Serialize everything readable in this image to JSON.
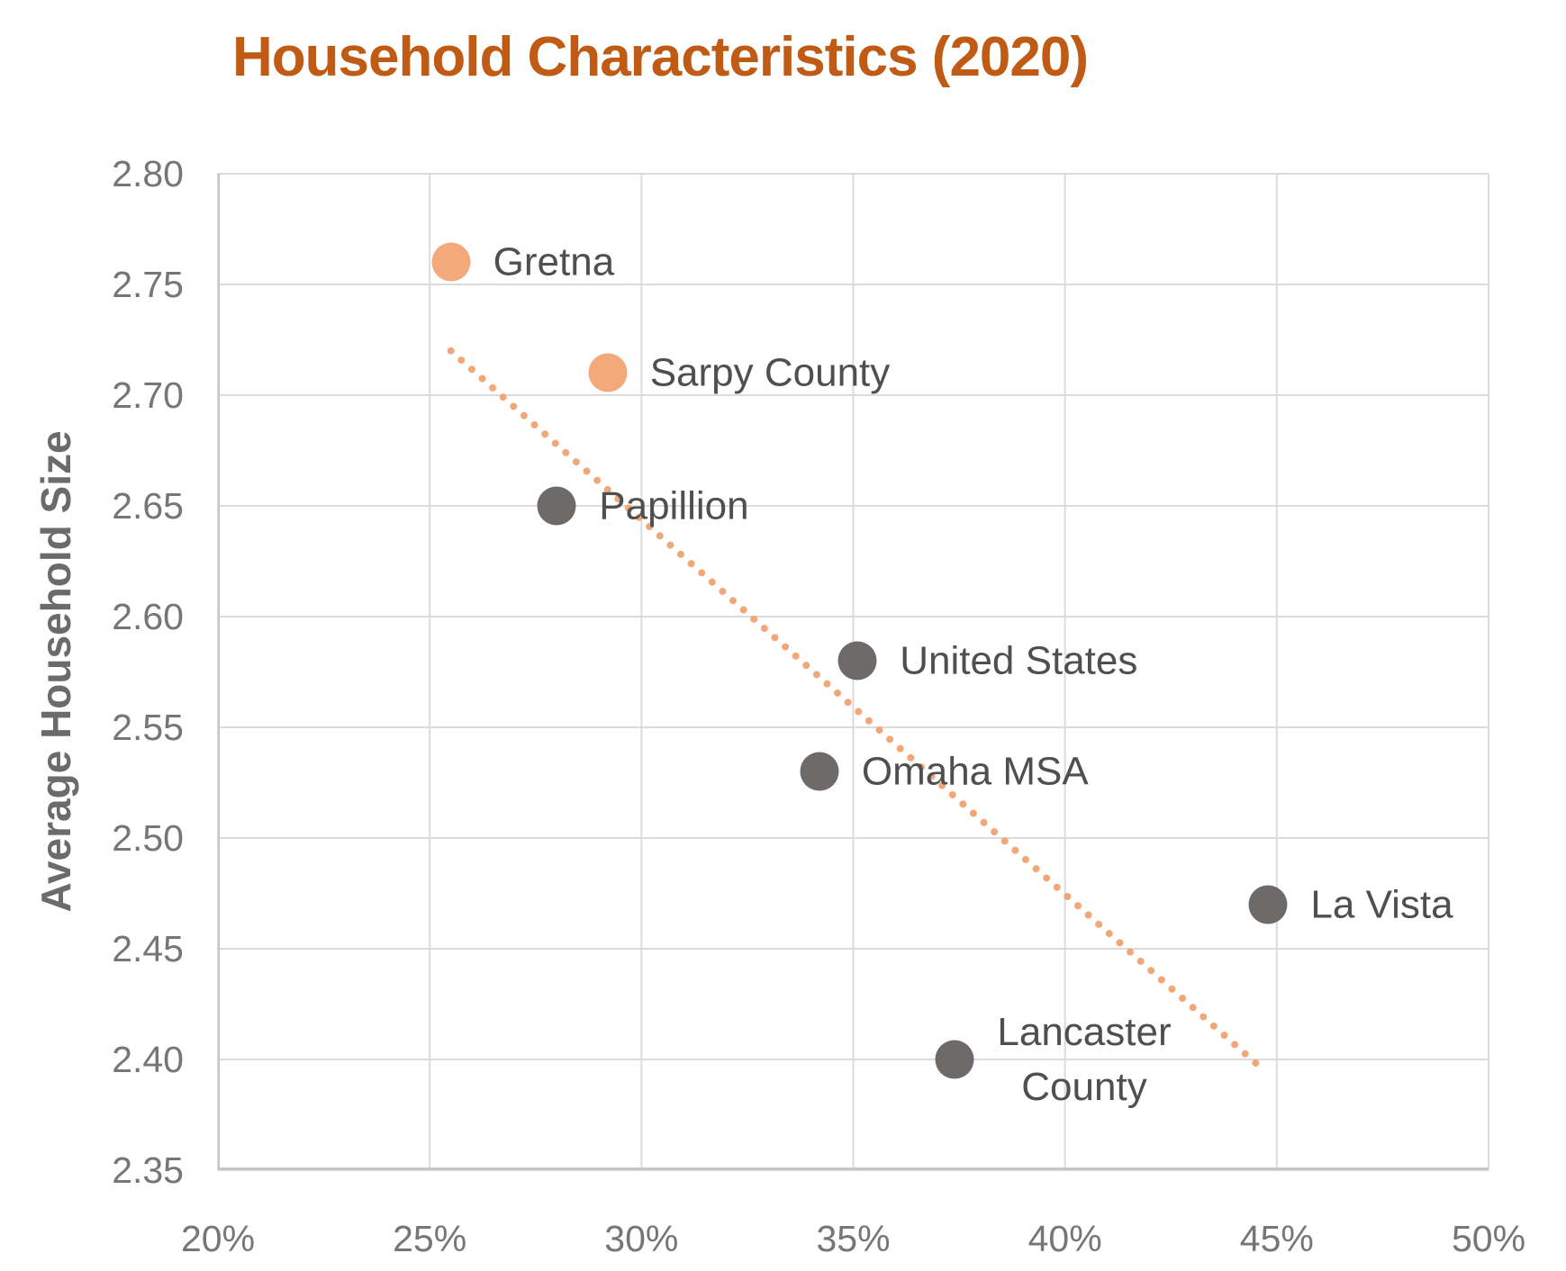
{
  "title": "Household Characteristics (2020)",
  "y_axis_title": "Average Household Size",
  "colors": {
    "title": "#C05B16",
    "highlight_point": "#F3A979",
    "base_point": "#6E6A6A",
    "trendline": "#F2A778",
    "tick_label": "#767676",
    "data_label": "#4F4F4F",
    "axis_title": "#6B6B6B",
    "gridline": "#DBDBDB",
    "axis_line": "#C6C6C6"
  },
  "chart_data": {
    "type": "scatter",
    "title": "Household Characteristics (2020)",
    "xlabel": "",
    "ylabel": "Average Household Size",
    "xlim": [
      20,
      50
    ],
    "ylim": [
      2.35,
      2.8
    ],
    "grid": true,
    "legend": "none",
    "x_ticks": [
      {
        "value": 20,
        "label": "20%"
      },
      {
        "value": 25,
        "label": "25%"
      },
      {
        "value": 30,
        "label": "30%"
      },
      {
        "value": 35,
        "label": "35%"
      },
      {
        "value": 40,
        "label": "40%"
      },
      {
        "value": 45,
        "label": "45%"
      },
      {
        "value": 50,
        "label": "50%"
      }
    ],
    "y_ticks": [
      {
        "value": 2.8,
        "label": "2.80"
      },
      {
        "value": 2.75,
        "label": "2.75"
      },
      {
        "value": 2.7,
        "label": "2.70"
      },
      {
        "value": 2.65,
        "label": "2.65"
      },
      {
        "value": 2.6,
        "label": "2.60"
      },
      {
        "value": 2.55,
        "label": "2.55"
      },
      {
        "value": 2.5,
        "label": "2.50"
      },
      {
        "value": 2.45,
        "label": "2.45"
      },
      {
        "value": 2.4,
        "label": "2.40"
      },
      {
        "value": 2.35,
        "label": "2.35"
      }
    ],
    "series": [
      {
        "name": "highlight",
        "color_key": "highlight_point",
        "points": [
          {
            "label": "Gretna",
            "x": 25.5,
            "y": 2.76
          },
          {
            "label": "Sarpy County",
            "x": 29.2,
            "y": 2.71
          }
        ]
      },
      {
        "name": "base",
        "color_key": "base_point",
        "points": [
          {
            "label": "Papillion",
            "x": 28.0,
            "y": 2.65
          },
          {
            "label": "United States",
            "x": 35.1,
            "y": 2.58
          },
          {
            "label": "Omaha MSA",
            "x": 34.2,
            "y": 2.53
          },
          {
            "label": "La Vista",
            "x": 44.8,
            "y": 2.47
          },
          {
            "label": "Lancaster County",
            "label_lines": [
              "Lancaster",
              "County"
            ],
            "x": 37.4,
            "y": 2.4
          }
        ]
      }
    ],
    "trendline": {
      "type": "linear",
      "style": "dotted",
      "color_key": "trendline",
      "x1": 25.5,
      "y1": 2.72,
      "x2": 44.7,
      "y2": 2.395
    }
  }
}
